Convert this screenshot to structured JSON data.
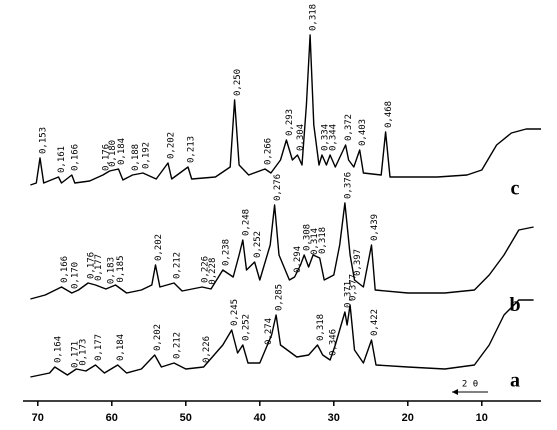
{
  "chart_data": {
    "type": "line",
    "x_label": "2 θ",
    "xlim": [
      72,
      2
    ],
    "xticks": [
      70,
      60,
      50,
      40,
      30,
      20,
      10
    ],
    "ylim": [
      0,
      400
    ],
    "color": "#000000",
    "series": [
      {
        "name": "a",
        "color": "#000000",
        "x": [
          71,
          68.4,
          67.7,
          66,
          64.8,
          63.5,
          62.2,
          61,
          59.2,
          58,
          56,
          54.2,
          53.3,
          51.6,
          50,
          47.6,
          45,
          43.8,
          43,
          42.3,
          41.6,
          40,
          38.4,
          37.8,
          37.2,
          35,
          33.4,
          32.2,
          31.5,
          30.5,
          29.8,
          28.5,
          28.2,
          27.8,
          27.2,
          26,
          24.9,
          24.3,
          20,
          15,
          11,
          9,
          7,
          5,
          3
        ],
        "values": [
          28,
          32,
          38,
          30,
          36,
          34,
          40,
          32,
          40,
          32,
          36,
          50,
          38,
          42,
          36,
          38,
          60,
          75,
          52,
          60,
          42,
          42,
          70,
          90,
          60,
          48,
          50,
          60,
          50,
          45,
          60,
          93,
          80,
          100,
          55,
          42,
          65,
          40,
          38,
          36,
          40,
          60,
          90,
          105,
          105
        ],
        "annotations": [
          {
            "text": "0,164",
            "x": 67.7
          },
          {
            "text": "0,171",
            "x": 65.4
          },
          {
            "text": "0,173",
            "x": 64.3
          },
          {
            "text": "0,177",
            "x": 62.2
          },
          {
            "text": "0,184",
            "x": 59.2
          },
          {
            "text": "0,202",
            "x": 54.2
          },
          {
            "text": "0,212",
            "x": 51.6
          },
          {
            "text": "0,226",
            "x": 47.6
          },
          {
            "text": "0,245",
            "x": 43.8
          },
          {
            "text": "0,252",
            "x": 42.3
          },
          {
            "text": "0,274",
            "x": 39.2
          },
          {
            "text": "0,285",
            "x": 37.8
          },
          {
            "text": "0,318",
            "x": 32.2
          },
          {
            "text": "0,346",
            "x": 30.5
          },
          {
            "text": "0,371",
            "x": 28.5
          },
          {
            "text": "0,377",
            "x": 27.8
          },
          {
            "text": "0,422",
            "x": 24.9
          }
        ]
      },
      {
        "name": "b",
        "color": "#000000",
        "x": [
          71,
          69,
          66.8,
          65.4,
          64.5,
          63.2,
          62.2,
          60.8,
          59.5,
          58,
          56,
          54.6,
          54.1,
          53.5,
          51.6,
          50.5,
          47.8,
          46.6,
          45,
          43.6,
          42.8,
          42.3,
          41.8,
          40.7,
          40,
          38.6,
          38,
          37.4,
          36,
          35.3,
          34.5,
          34,
          33.4,
          32.8,
          31.9,
          31.3,
          30,
          29.2,
          28.5,
          27.8,
          27.2,
          26,
          24.9,
          24.4,
          20,
          15,
          11,
          9,
          7,
          5,
          3
        ],
        "values": [
          106,
          110,
          118,
          112,
          115,
          122,
          120,
          116,
          120,
          112,
          115,
          120,
          140,
          118,
          122,
          114,
          118,
          116,
          135,
          128,
          150,
          165,
          135,
          143,
          125,
          160,
          200,
          150,
          125,
          128,
          140,
          150,
          138,
          150,
          147,
          125,
          130,
          160,
          202,
          150,
          125,
          118,
          160,
          115,
          112,
          112,
          115,
          130,
          150,
          175,
          178
        ],
        "annotations": [
          {
            "text": "0,166",
            "x": 66.8
          },
          {
            "text": "0,170",
            "x": 65.4
          },
          {
            "text": "0,176",
            "x": 63.2
          },
          {
            "text": "0,177",
            "x": 62.2
          },
          {
            "text": "0,183",
            "x": 60.5
          },
          {
            "text": "0,185",
            "x": 59.2
          },
          {
            "text": "0,202",
            "x": 54.1
          },
          {
            "text": "0,212",
            "x": 51.6
          },
          {
            "text": "0,226",
            "x": 47.8
          },
          {
            "text": "0,228",
            "x": 46.8
          },
          {
            "text": "0,238",
            "x": 45
          },
          {
            "text": "0,248",
            "x": 42.3
          },
          {
            "text": "0,252",
            "x": 40.7
          },
          {
            "text": "0,276",
            "x": 38
          },
          {
            "text": "0,294",
            "x": 35.3
          },
          {
            "text": "0,308",
            "x": 34
          },
          {
            "text": "0,314",
            "x": 33
          },
          {
            "text": "0,318",
            "x": 31.9
          },
          {
            "text": "0,376",
            "x": 28.5
          },
          {
            "text": "0,397",
            "x": 27.2
          },
          {
            "text": "0,439",
            "x": 24.9
          }
        ]
      },
      {
        "name": "c",
        "color": "#000000",
        "x": [
          71,
          70.2,
          69.7,
          69.2,
          67.2,
          66.8,
          65.4,
          65,
          63,
          61.2,
          60.3,
          59.1,
          58.5,
          57.2,
          55.8,
          54,
          52.4,
          51.9,
          49.7,
          49.2,
          46,
          44,
          43.4,
          42.8,
          41.5,
          39.3,
          38.5,
          37.2,
          36.4,
          35.6,
          34.9,
          34.3,
          33.7,
          33.2,
          32.7,
          32,
          31.6,
          31,
          30.5,
          29.8,
          28.4,
          28,
          27.3,
          26.5,
          26,
          23.6,
          23,
          22.4,
          16,
          12,
          10,
          8,
          6,
          4,
          2
        ],
        "values": [
          220,
          222,
          247,
          222,
          228,
          222,
          230,
          222,
          224,
          230,
          234,
          236,
          225,
          230,
          232,
          226,
          242,
          226,
          238,
          226,
          228,
          238,
          305,
          240,
          230,
          236,
          232,
          245,
          265,
          245,
          250,
          240,
          300,
          370,
          280,
          240,
          250,
          240,
          250,
          238,
          260,
          245,
          238,
          255,
          232,
          230,
          273,
          228,
          228,
          230,
          235,
          260,
          272,
          276,
          276
        ],
        "annotations": [
          {
            "text": "0,153",
            "x": 69.7
          },
          {
            "text": "0,161",
            "x": 67.2
          },
          {
            "text": "0,166",
            "x": 65.4
          },
          {
            "text": "0,176",
            "x": 61.2
          },
          {
            "text": "0,180",
            "x": 60.3
          },
          {
            "text": "0,184",
            "x": 59.1
          },
          {
            "text": "0,188",
            "x": 57.2
          },
          {
            "text": "0,192",
            "x": 55.8
          },
          {
            "text": "0,202",
            "x": 52.4
          },
          {
            "text": "0,213",
            "x": 49.7
          },
          {
            "text": "0,250",
            "x": 43.4
          },
          {
            "text": "0,266",
            "x": 39.3
          },
          {
            "text": "0,293",
            "x": 36.4
          },
          {
            "text": "0,304",
            "x": 34.9
          },
          {
            "text": "0,318",
            "x": 33.2
          },
          {
            "text": "0,334",
            "x": 31.6
          },
          {
            "text": "0,344",
            "x": 30.5
          },
          {
            "text": "0,372",
            "x": 28.4
          },
          {
            "text": "0,403",
            "x": 26.5
          },
          {
            "text": "0,468",
            "x": 23
          }
        ]
      }
    ]
  }
}
